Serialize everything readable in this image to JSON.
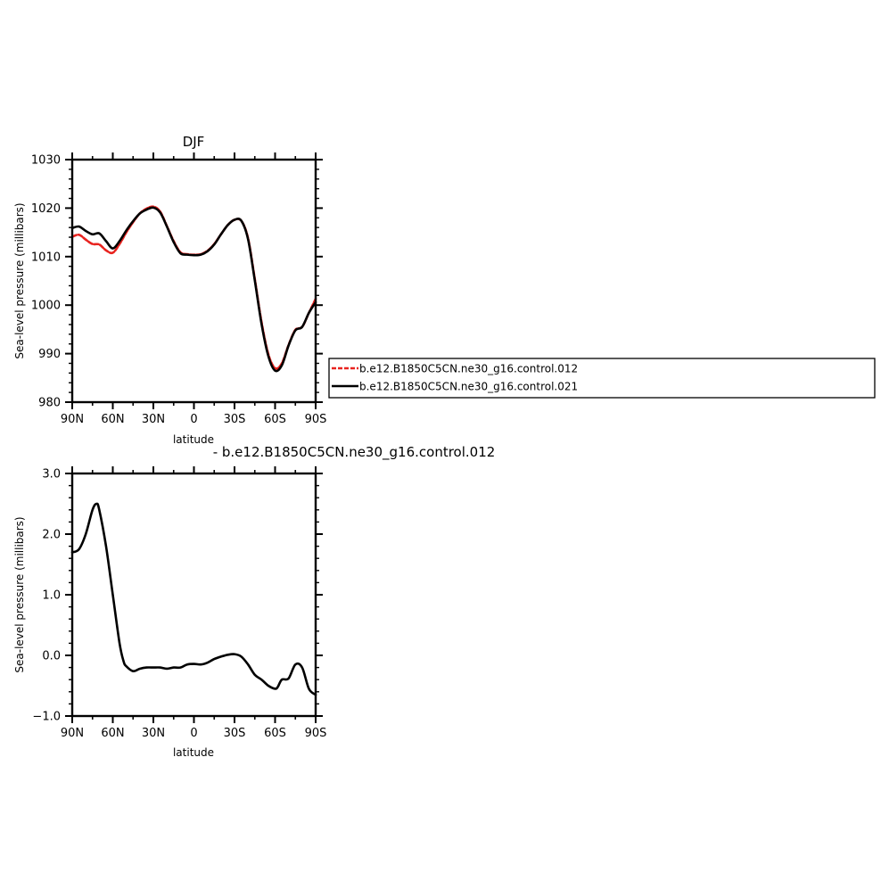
{
  "chart_data": [
    {
      "type": "line",
      "title": "DJF",
      "xlabel": "latitude",
      "ylabel": "Sea-level pressure (millibars)",
      "xlim": [
        90,
        -90
      ],
      "ylim": [
        980,
        1030
      ],
      "xticks": [
        {
          "value": 90,
          "label": "90N"
        },
        {
          "value": 60,
          "label": "60N"
        },
        {
          "value": 30,
          "label": "30N"
        },
        {
          "value": 0,
          "label": "0"
        },
        {
          "value": -30,
          "label": "30S"
        },
        {
          "value": -60,
          "label": "60S"
        },
        {
          "value": -90,
          "label": "90S"
        }
      ],
      "yticks": [
        {
          "value": 980,
          "label": "980"
        },
        {
          "value": 990,
          "label": "990"
        },
        {
          "value": 1000,
          "label": "1000"
        },
        {
          "value": 1010,
          "label": "1010"
        },
        {
          "value": 1020,
          "label": "1020"
        },
        {
          "value": 1030,
          "label": "1030"
        }
      ],
      "legend_position": "right",
      "series": [
        {
          "name": "b.e12.B1850C5CN.ne30_g16.control.012",
          "color": "#e8231f",
          "dashed": true,
          "x": [
            90,
            85,
            80,
            75,
            70,
            65,
            60,
            55,
            50,
            45,
            40,
            35,
            30,
            25,
            20,
            15,
            10,
            5,
            0,
            -5,
            -10,
            -15,
            -20,
            -25,
            -30,
            -35,
            -40,
            -45,
            -50,
            -55,
            -60,
            -65,
            -70,
            -75,
            -80,
            -85,
            -90
          ],
          "y": [
            1014.1,
            1014.5,
            1013.5,
            1012.6,
            1012.5,
            1011.3,
            1010.8,
            1012.6,
            1015.0,
            1017.1,
            1018.9,
            1019.9,
            1020.3,
            1019.3,
            1016.3,
            1013.2,
            1010.9,
            1010.5,
            1010.4,
            1010.5,
            1011.2,
            1012.6,
            1014.6,
            1016.5,
            1017.6,
            1017.4,
            1013.8,
            1005.4,
            996.5,
            989.9,
            987.0,
            988.0,
            991.8,
            994.9,
            995.5,
            998.4,
            1001.3
          ]
        },
        {
          "name": "b.e12.B1850C5CN.ne30_g16.control.021",
          "color": "#000000",
          "dashed": false,
          "x": [
            90,
            85,
            80,
            75,
            70,
            65,
            60,
            55,
            50,
            45,
            40,
            35,
            30,
            25,
            20,
            15,
            10,
            5,
            0,
            -5,
            -10,
            -15,
            -20,
            -25,
            -30,
            -35,
            -40,
            -45,
            -50,
            -55,
            -60,
            -65,
            -70,
            -75,
            -80,
            -85,
            -90
          ],
          "y": [
            1015.9,
            1016.2,
            1015.3,
            1014.6,
            1014.8,
            1013.2,
            1011.7,
            1013.2,
            1015.4,
            1017.3,
            1018.9,
            1019.7,
            1020.1,
            1019.1,
            1016.2,
            1013.0,
            1010.7,
            1010.4,
            1010.3,
            1010.4,
            1011.1,
            1012.5,
            1014.6,
            1016.5,
            1017.6,
            1017.4,
            1013.6,
            1005.1,
            996.1,
            989.5,
            986.5,
            987.6,
            991.7,
            994.8,
            995.5,
            998.4,
            1000.6
          ]
        }
      ]
    },
    {
      "type": "line",
      "title": "- b.e12.B1850C5CN.ne30_g16.control.012",
      "xlabel": "latitude",
      "ylabel": "Sea-level pressure (millibars)",
      "xlim": [
        90,
        -90
      ],
      "ylim": [
        -1.0,
        3.0
      ],
      "xticks": [
        {
          "value": 90,
          "label": "90N"
        },
        {
          "value": 60,
          "label": "60N"
        },
        {
          "value": 30,
          "label": "30N"
        },
        {
          "value": 0,
          "label": "0"
        },
        {
          "value": -30,
          "label": "30S"
        },
        {
          "value": -60,
          "label": "60S"
        },
        {
          "value": -90,
          "label": "90S"
        }
      ],
      "yticks": [
        {
          "value": -1.0,
          "label": "−1.0"
        },
        {
          "value": 0.0,
          "label": "0.0"
        },
        {
          "value": 1.0,
          "label": "1.0"
        },
        {
          "value": 2.0,
          "label": "2.0"
        },
        {
          "value": 3.0,
          "label": "3.0"
        }
      ],
      "series": [
        {
          "name": "",
          "color": "#000000",
          "dashed": false,
          "x": [
            90,
            85,
            80,
            75,
            72,
            70,
            65,
            60,
            55,
            52,
            50,
            45,
            40,
            35,
            30,
            25,
            20,
            15,
            10,
            5,
            0,
            -5,
            -10,
            -15,
            -20,
            -25,
            -30,
            -35,
            -40,
            -45,
            -50,
            -55,
            -60,
            -62,
            -65,
            -70,
            -75,
            -80,
            -85,
            -90
          ],
          "y": [
            1.7,
            1.75,
            2.0,
            2.4,
            2.5,
            2.4,
            1.8,
            1.0,
            0.2,
            -0.1,
            -0.18,
            -0.26,
            -0.22,
            -0.2,
            -0.2,
            -0.2,
            -0.22,
            -0.2,
            -0.2,
            -0.15,
            -0.14,
            -0.15,
            -0.12,
            -0.06,
            -0.02,
            0.01,
            0.02,
            -0.02,
            -0.15,
            -0.32,
            -0.4,
            -0.5,
            -0.55,
            -0.52,
            -0.4,
            -0.38,
            -0.15,
            -0.2,
            -0.55,
            -0.65
          ]
        }
      ]
    }
  ]
}
